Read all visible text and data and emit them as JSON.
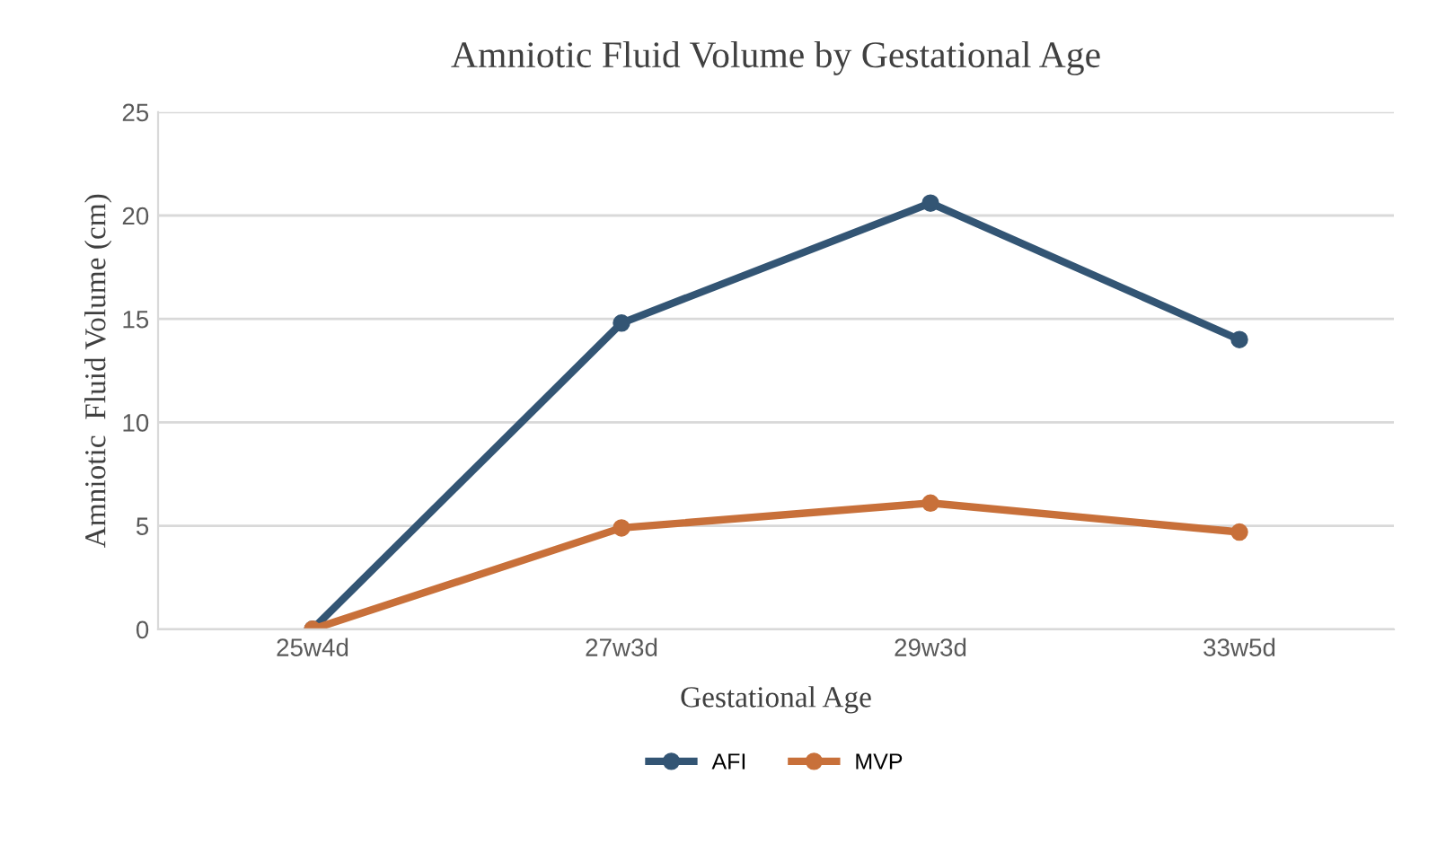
{
  "chart_data": {
    "type": "line",
    "title": "Amniotic Fluid Volume by Gestational Age",
    "xlabel": "Gestational Age",
    "ylabel": "Amniotic  Fluid Volume (cm)",
    "categories": [
      "25w4d",
      "27w3d",
      "29w3d",
      "33w5d"
    ],
    "series": [
      {
        "name": "AFI",
        "color": "#335574",
        "values": [
          0,
          14.8,
          20.6,
          14.0
        ]
      },
      {
        "name": "MVP",
        "color": "#c8703a",
        "values": [
          0,
          4.9,
          6.1,
          4.7
        ]
      }
    ],
    "ylim": [
      0,
      25
    ],
    "yticks": [
      0,
      5,
      10,
      15,
      20,
      25
    ],
    "grid": "y",
    "legend": "bottom",
    "marker": "circle",
    "line_style": "solid"
  }
}
